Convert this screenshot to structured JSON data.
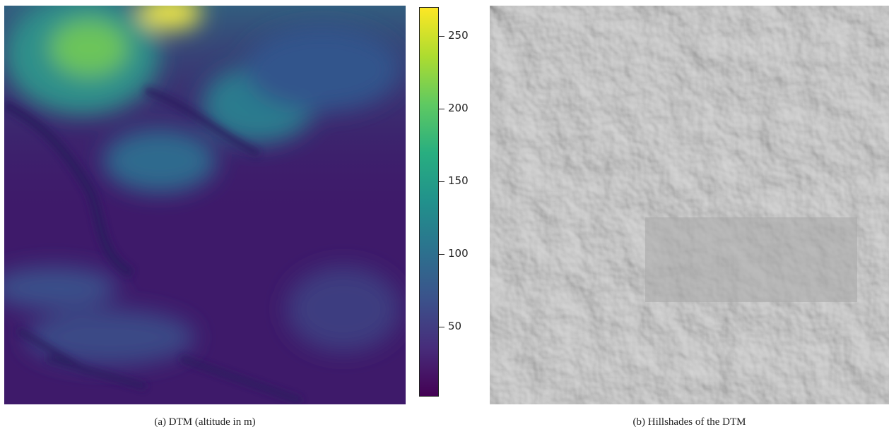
{
  "figure": {
    "panel_a": {
      "caption": "(a) DTM (altitude in m)",
      "colormap": [
        "#440154",
        "#472d7b",
        "#3b528b",
        "#2c728e",
        "#21918c",
        "#28ae80",
        "#5ec962",
        "#addc30",
        "#fde725"
      ]
    },
    "colorbar": {
      "range": [
        2,
        270
      ],
      "ticks": [
        {
          "value": 250,
          "label": "250"
        },
        {
          "value": 200,
          "label": "200"
        },
        {
          "value": 150,
          "label": "150"
        },
        {
          "value": 100,
          "label": "100"
        },
        {
          "value": 50,
          "label": "50"
        }
      ]
    },
    "panel_b": {
      "caption": "(b) Hillshades of the DTM",
      "base_color": "#a9a9a9"
    }
  }
}
